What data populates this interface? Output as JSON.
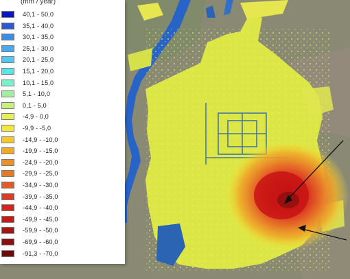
{
  "legend": {
    "title": "(mm / year)",
    "classes": [
      {
        "label": "40,1 - 50,0",
        "color": "#0a14c8"
      },
      {
        "label": "35,1 - 40,0",
        "color": "#2d5ad2"
      },
      {
        "label": "30,1 - 35,0",
        "color": "#3c8ce6"
      },
      {
        "label": "25,1 - 30,0",
        "color": "#46aaf0"
      },
      {
        "label": "20,1 - 25,0",
        "color": "#50c8f0"
      },
      {
        "label": "15,1 - 20,0",
        "color": "#5ae6e6"
      },
      {
        "label": "10,1 - 15,0",
        "color": "#78f0c8"
      },
      {
        "label": "5,1 - 10,0",
        "color": "#a0f0a0"
      },
      {
        "label": "0,1 - 5,0",
        "color": "#c8f07c"
      },
      {
        "label": "-4,9 - 0,0",
        "color": "#e6f050"
      },
      {
        "label": "-9,9 - -5,0",
        "color": "#f5e632"
      },
      {
        "label": "-14,9 - -10,0",
        "color": "#f5c828"
      },
      {
        "label": "-19,9 - -15,0",
        "color": "#f0aa28"
      },
      {
        "label": "-24,9 - -20,0",
        "color": "#eb9128"
      },
      {
        "label": "-29,9 - -25,0",
        "color": "#e67828"
      },
      {
        "label": "-34,9 - -30,0",
        "color": "#e15a28"
      },
      {
        "label": "-39,9 - -35,0",
        "color": "#dc3c23"
      },
      {
        "label": "-44,9 - -40,0",
        "color": "#d7231e"
      },
      {
        "label": "-49,9 - -45,0",
        "color": "#c81919"
      },
      {
        "label": "-59,9 - -50,0",
        "color": "#aa1414"
      },
      {
        "label": "-69,9 - -60,0",
        "color": "#8c0f0f"
      },
      {
        "label": "-91,3 - -70,0",
        "color": "#6e0a0a"
      }
    ]
  },
  "map": {
    "colors": {
      "terrain": "#8c8a78",
      "river": "#2864c8",
      "stable": "#dce646",
      "subsidence_core": "#c81414"
    }
  }
}
